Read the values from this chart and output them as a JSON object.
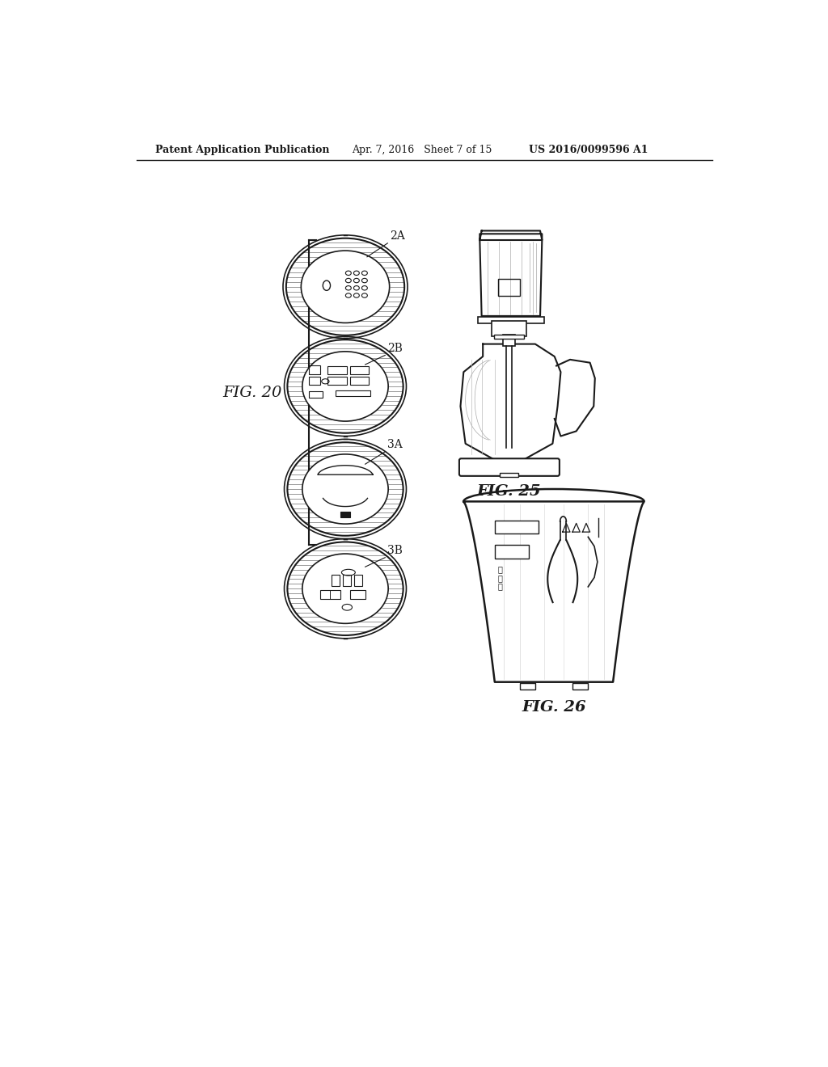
{
  "bg_color": "#ffffff",
  "header_text_left": "Patent Application Publication",
  "header_text_mid": "Apr. 7, 2016   Sheet 7 of 15",
  "header_text_right": "US 2016/0099596 A1",
  "fig20_label": "FIG. 20",
  "fig25_label": "FIG. 25",
  "fig26_label": "FIG. 26",
  "label_2A": "2A",
  "label_2B": "2B",
  "label_3A": "3A",
  "label_3B": "3B",
  "line_color": "#1a1a1a",
  "text_color": "#1a1a1a",
  "font_size_header": 9,
  "font_size_fig": 14,
  "font_size_label": 10
}
